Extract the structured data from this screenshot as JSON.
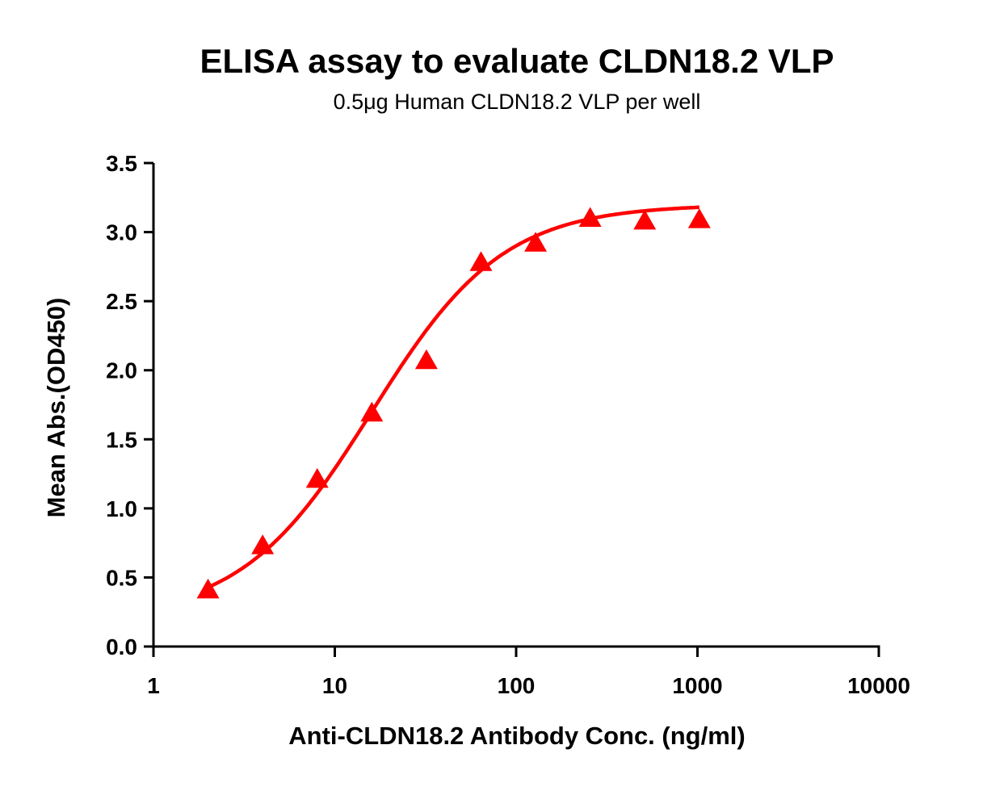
{
  "chart_data": {
    "type": "scatter",
    "title": "ELISA assay to evaluate CLDN18.2 VLP",
    "subtitle": "0.5μg Human CLDN18.2 VLP per well",
    "xlabel": "Anti-CLDN18.2 Antibody Conc. (ng/ml)",
    "ylabel": "Mean Abs.(OD450)",
    "xscale": "log",
    "xlim": [
      1,
      10000
    ],
    "ylim": [
      0,
      3.5
    ],
    "xticks": [
      "1",
      "10",
      "100",
      "1000",
      "10000"
    ],
    "xtick_values": [
      1,
      10,
      100,
      1000,
      10000
    ],
    "yticks": [
      "0.0",
      "0.5",
      "1.0",
      "1.5",
      "2.0",
      "2.5",
      "3.0",
      "3.5"
    ],
    "ytick_values": [
      0,
      0.5,
      1.0,
      1.5,
      2.0,
      2.5,
      3.0,
      3.5
    ],
    "grid": false,
    "series": [
      {
        "marker": "triangle",
        "color": "#ff0000",
        "x": [
          2,
          4,
          8,
          16,
          32,
          64,
          128,
          256,
          512,
          1024
        ],
        "y": [
          0.41,
          0.73,
          1.21,
          1.69,
          2.07,
          2.78,
          2.92,
          3.1,
          3.08,
          3.09
        ]
      }
    ],
    "fit_curve": {
      "model": "4PL",
      "color": "#ff0000",
      "bottom": 0.2,
      "top": 3.2,
      "ec50": 16,
      "hill": 1.2,
      "x_range": [
        2,
        1024
      ]
    }
  }
}
